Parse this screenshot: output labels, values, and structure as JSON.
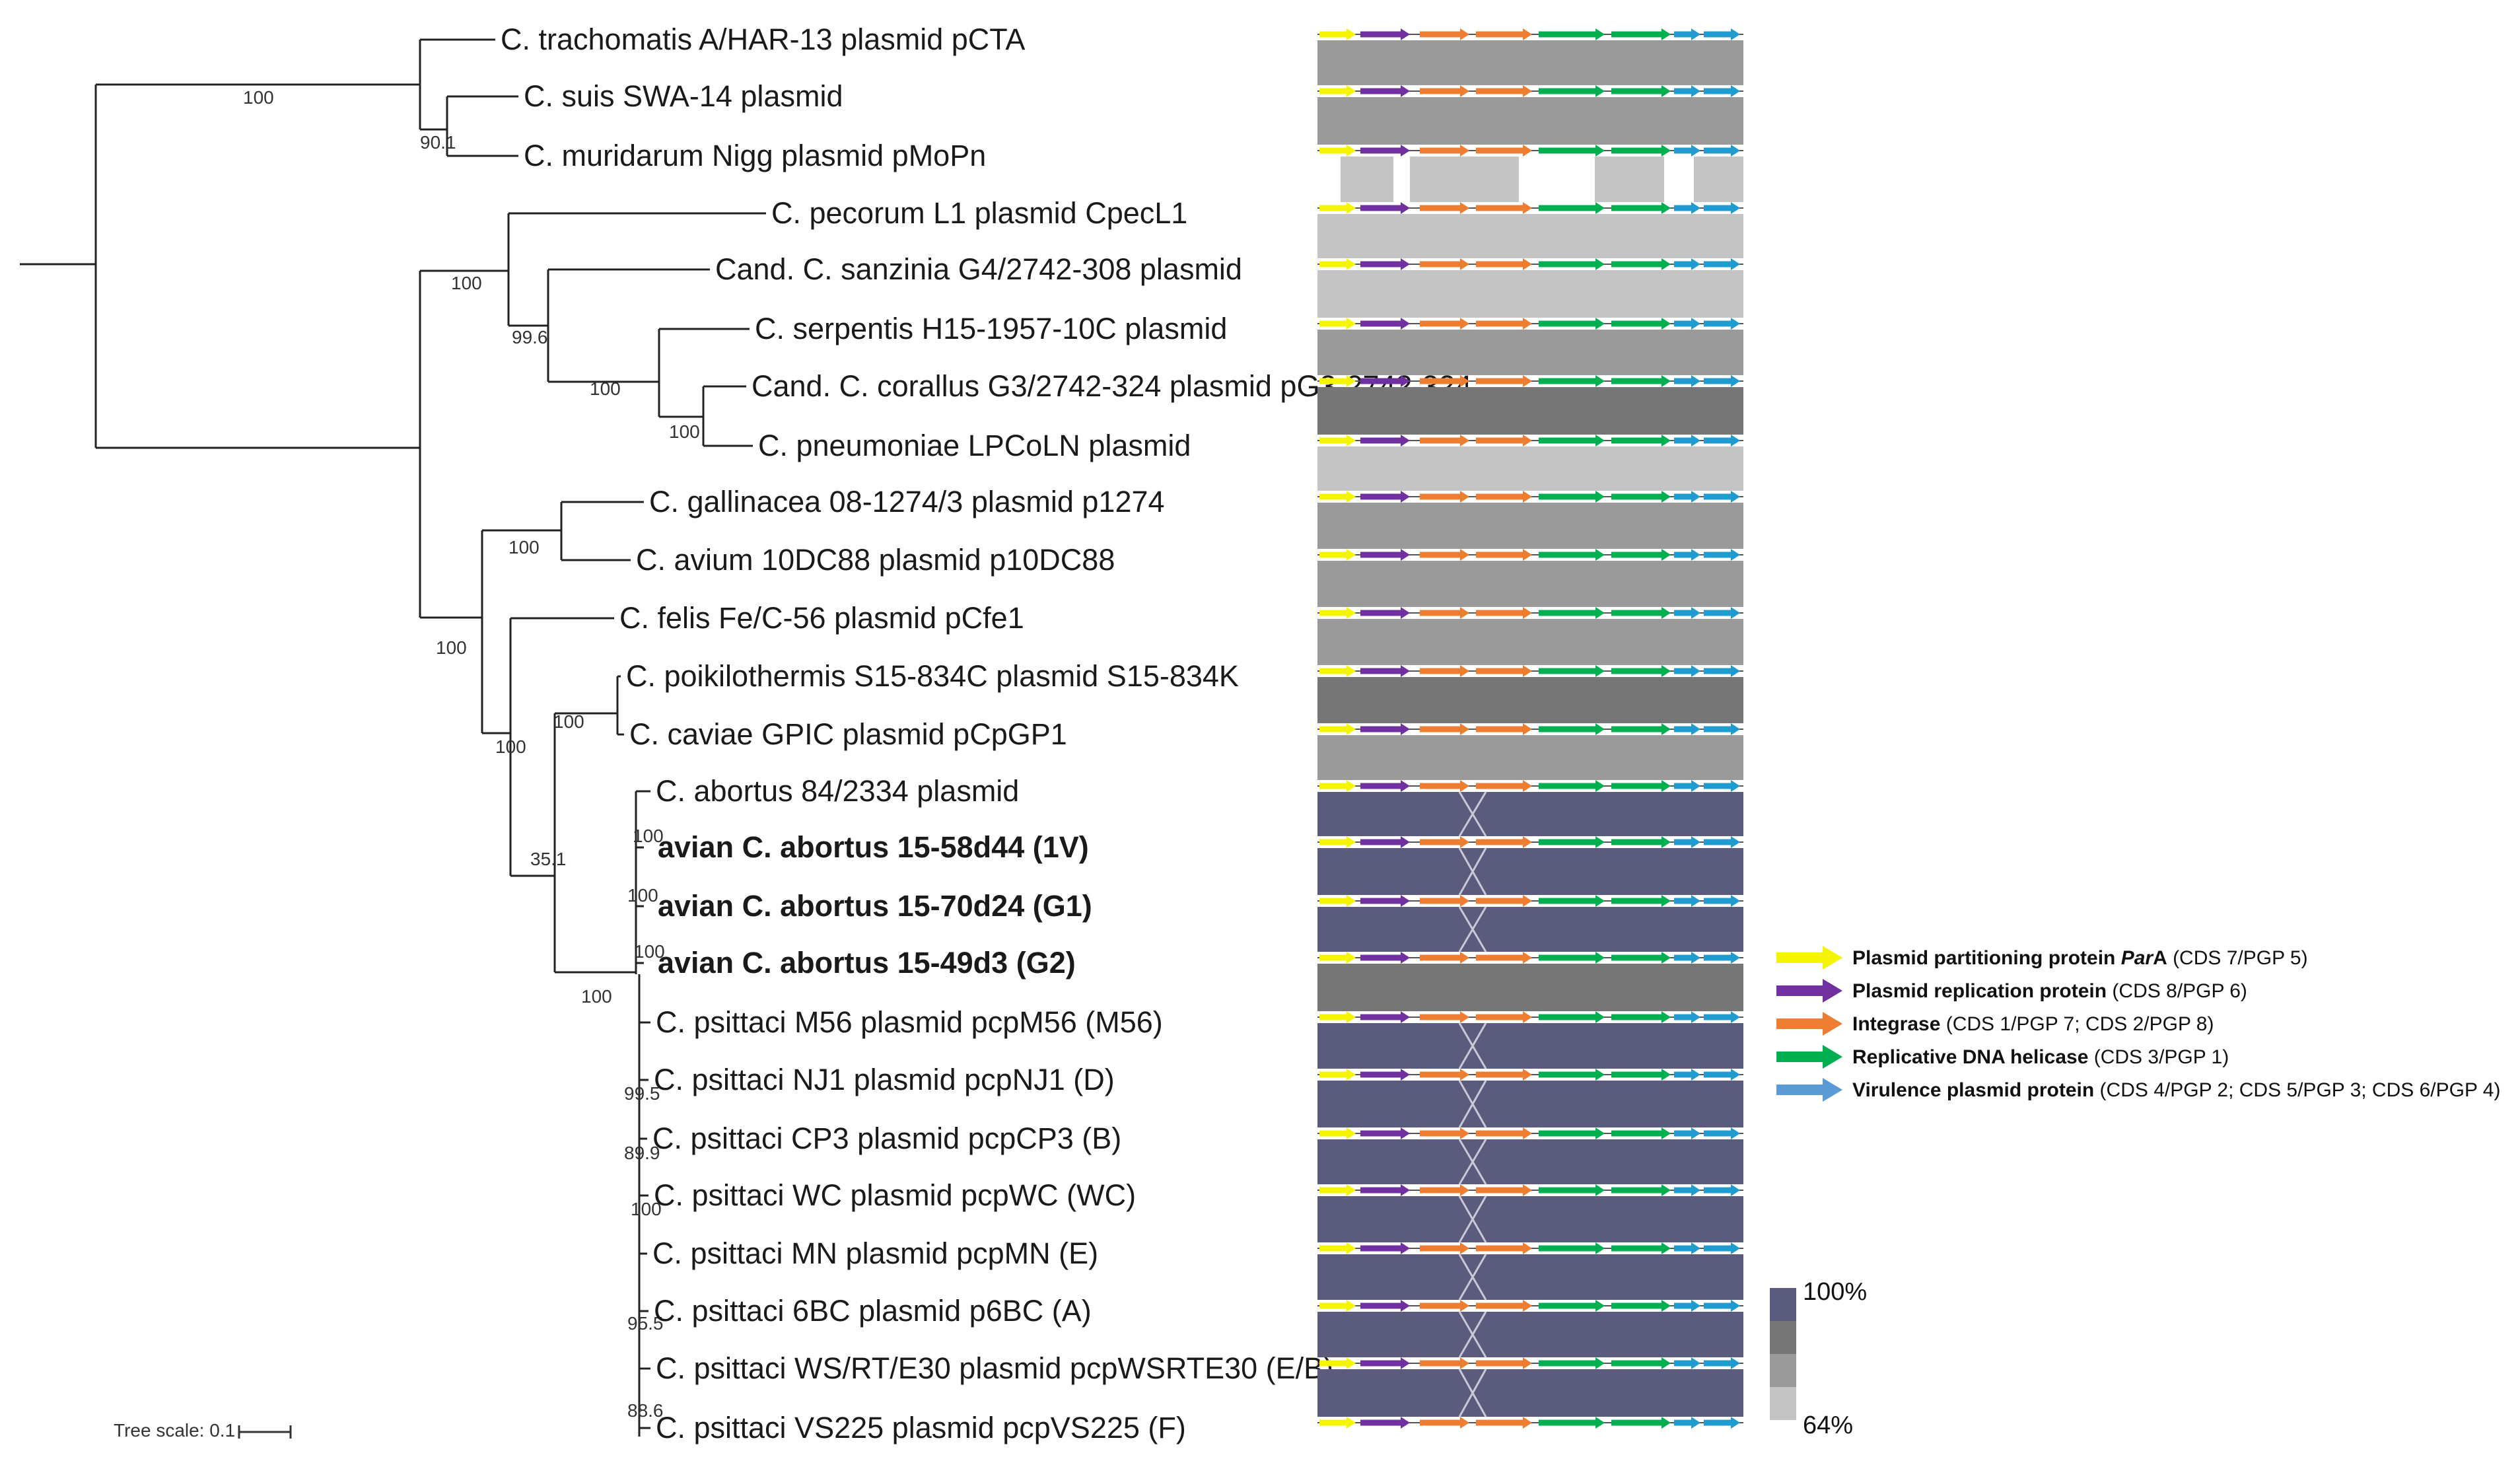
{
  "tree": {
    "taxa": [
      {
        "id": "t1",
        "label": "C. trachomatis A/HAR-13 plasmid pCTA",
        "bold": false
      },
      {
        "id": "t2",
        "label": "C. suis SWA-14 plasmid",
        "bold": false
      },
      {
        "id": "t3",
        "label": "C. muridarum Nigg plasmid pMoPn",
        "bold": false
      },
      {
        "id": "t4",
        "label": "C. pecorum L1 plasmid CpecL1",
        "bold": false
      },
      {
        "id": "t5",
        "label": "Cand. C. sanzinia G4/2742-308 plasmid",
        "bold": false
      },
      {
        "id": "t6",
        "label": "C. serpentis H15-1957-10C plasmid",
        "bold": false
      },
      {
        "id": "t7",
        "label": "Cand. C. corallus G3/2742-324 plasmid pG3-2742-324",
        "bold": false
      },
      {
        "id": "t8",
        "label": "C. pneumoniae LPCoLN plasmid",
        "bold": false
      },
      {
        "id": "t9",
        "label": "C. gallinacea 08-1274/3 plasmid p1274",
        "bold": false
      },
      {
        "id": "t10",
        "label": "C. avium 10DC88 plasmid p10DC88",
        "bold": false
      },
      {
        "id": "t11",
        "label": "C. felis Fe/C-56 plasmid pCfe1",
        "bold": false
      },
      {
        "id": "t12",
        "label": "C. poikilothermis S15-834C plasmid S15-834K",
        "bold": false
      },
      {
        "id": "t13",
        "label": "C. caviae GPIC plasmid pCpGP1",
        "bold": false
      },
      {
        "id": "t14",
        "label": "C. abortus 84/2334 plasmid",
        "bold": false
      },
      {
        "id": "t15",
        "label": "avian C. abortus 15-58d44 (1V)",
        "bold": true
      },
      {
        "id": "t16",
        "label": "avian C. abortus 15-70d24 (G1)",
        "bold": true
      },
      {
        "id": "t17",
        "label": "avian C. abortus 15-49d3 (G2)",
        "bold": true
      },
      {
        "id": "t18",
        "label": "C. psittaci M56 plasmid pcpM56 (M56)",
        "bold": false
      },
      {
        "id": "t19",
        "label": "C. psittaci NJ1 plasmid pcpNJ1 (D)",
        "bold": false
      },
      {
        "id": "t20",
        "label": "C. psittaci CP3 plasmid pcpCP3 (B)",
        "bold": false
      },
      {
        "id": "t21",
        "label": "C. psittaci WC plasmid pcpWC (WC)",
        "bold": false
      },
      {
        "id": "t22",
        "label": "C. psittaci MN plasmid pcpMN (E)",
        "bold": false
      },
      {
        "id": "t23",
        "label": "C. psittaci 6BC plasmid p6BC (A)",
        "bold": false
      },
      {
        "id": "t24",
        "label": "C. psittaci WS/RT/E30 plasmid pcpWSRTE30 (E/B)",
        "bold": false
      },
      {
        "id": "t25",
        "label": "C. psittaci VS225 plasmid pcpVS225 (F)",
        "bold": false
      }
    ],
    "bootstrap": [
      "100",
      "90.1",
      "100",
      "99.6",
      "100",
      "100",
      "100",
      "100",
      "100",
      "100",
      "35.1",
      "100",
      "100",
      "100",
      "100",
      "99.5",
      "89.9",
      "100",
      "95.5",
      "88.6"
    ],
    "scale_label": "Tree scale: 0.1"
  },
  "legend": {
    "items": [
      {
        "bold": "Plasmid partitioning protein ",
        "italic": "Par",
        "bold2": "A",
        "rest": " (CDS 7/PGP 5)",
        "color": "#f5f500"
      },
      {
        "bold": "Plasmid replication protein",
        "italic": "",
        "bold2": "",
        "rest": " (CDS 8/PGP 6)",
        "color": "#7030a0"
      },
      {
        "bold": "Integrase",
        "italic": "",
        "bold2": "",
        "rest": " (CDS 1/PGP 7; CDS 2/PGP 8)",
        "color": "#ed7d31"
      },
      {
        "bold": "Replicative DNA helicase",
        "italic": "",
        "bold2": "",
        "rest": " (CDS 3/PGP 1)",
        "color": "#00b050"
      },
      {
        "bold": "Virulence plasmid protein",
        "italic": "",
        "bold2": "",
        "rest": " (CDS 4/PGP 2; CDS 5/PGP 3; CDS 6/PGP 4)",
        "color": "#5b9bd5"
      }
    ]
  },
  "identity_scale": {
    "max_label": "100%",
    "min_label": "64%"
  },
  "colors": {
    "parA": "#f5f500",
    "replication": "#7030a0",
    "integrase": "#ed7d31",
    "helicase": "#00b050",
    "virulence": "#1f9bd0",
    "band_high": "#5b5b7e",
    "band_mid_dark": "#767676",
    "band_mid": "#9a9a9a",
    "band_light": "#c4c4c4"
  },
  "bands": [
    {
      "identity": "mid"
    },
    {
      "identity": "mid"
    },
    {
      "identity": "light"
    },
    {
      "identity": "light"
    },
    {
      "identity": "light"
    },
    {
      "identity": "mid"
    },
    {
      "identity": "middark"
    },
    {
      "identity": "light"
    },
    {
      "identity": "mid"
    },
    {
      "identity": "mid"
    },
    {
      "identity": "mid"
    },
    {
      "identity": "middark"
    },
    {
      "identity": "mid"
    },
    {
      "identity": "high"
    },
    {
      "identity": "high"
    },
    {
      "identity": "high"
    },
    {
      "identity": "middark"
    },
    {
      "identity": "high"
    },
    {
      "identity": "high"
    },
    {
      "identity": "high"
    },
    {
      "identity": "high"
    },
    {
      "identity": "high"
    },
    {
      "identity": "high"
    },
    {
      "identity": "high"
    }
  ]
}
